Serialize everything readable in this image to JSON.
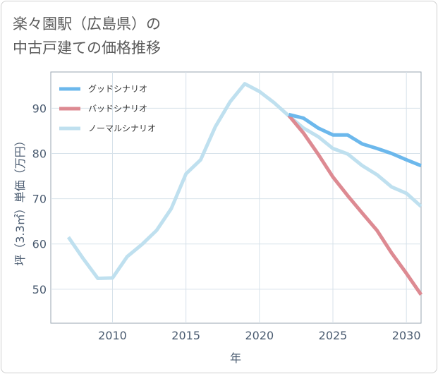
{
  "title": {
    "line1": "楽々園駅（広島県）の",
    "line2": "中古戸建ての価格推移"
  },
  "chart_data": {
    "type": "line",
    "xlabel": "年",
    "ylabel": "坪（3.3㎡）単価（万円）",
    "xlim": [
      2005.8,
      2031
    ],
    "ylim": [
      42.5,
      98
    ],
    "xticks": [
      2010,
      2015,
      2020,
      2025,
      2030
    ],
    "yticks": [
      50,
      60,
      70,
      80,
      90
    ],
    "grid": true,
    "legend_position": "top-left",
    "series": [
      {
        "name": "グッドシナリオ",
        "color": "#6cb8ec",
        "x": [
          2022,
          2023,
          2024,
          2025,
          2026,
          2027,
          2028,
          2029,
          2030,
          2031
        ],
        "y": [
          88.6,
          87.8,
          85.6,
          84.1,
          84.1,
          82.1,
          81.1,
          80.0,
          78.6,
          77.3
        ]
      },
      {
        "name": "バッドシナリオ",
        "color": "#dd8a92",
        "x": [
          2022,
          2023,
          2024,
          2025,
          2026,
          2027,
          2028,
          2029,
          2030,
          2031
        ],
        "y": [
          88.4,
          84.5,
          79.8,
          74.8,
          70.7,
          66.8,
          63.0,
          58.0,
          53.5,
          48.8
        ]
      },
      {
        "name": "ノーマルシナリオ",
        "color": "#bfe0ef",
        "x": [
          2007,
          2008,
          2009,
          2010,
          2011,
          2012,
          2013,
          2014,
          2015,
          2016,
          2017,
          2018,
          2019,
          2020,
          2021,
          2022,
          2023,
          2024,
          2025,
          2026,
          2027,
          2028,
          2029,
          2030,
          2031
        ],
        "y": [
          61.5,
          56.8,
          52.4,
          52.5,
          57.2,
          59.9,
          63.0,
          67.8,
          75.5,
          78.6,
          85.9,
          91.4,
          95.4,
          93.7,
          91.2,
          88.3,
          85.6,
          83.7,
          81.1,
          79.9,
          77.3,
          75.3,
          72.6,
          71.2,
          68.3
        ]
      }
    ]
  }
}
